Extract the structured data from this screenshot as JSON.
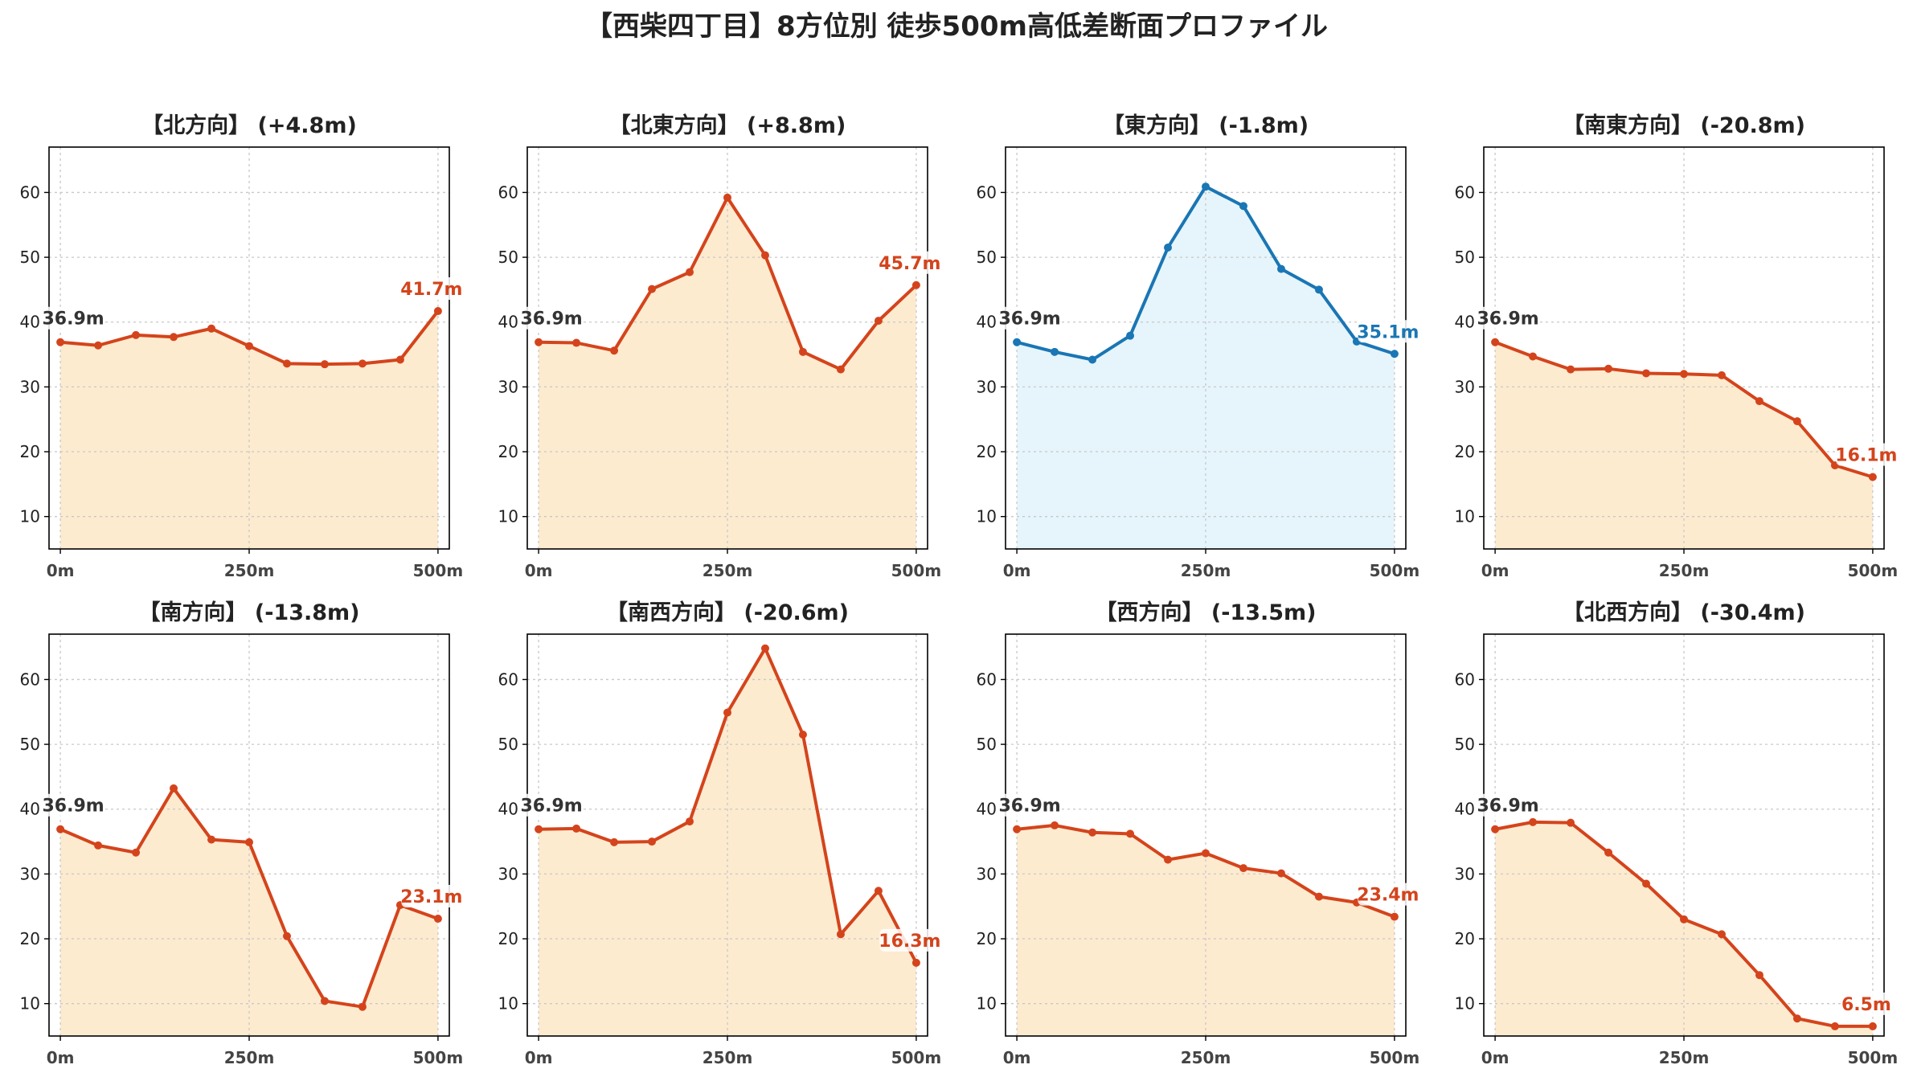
{
  "title": "【西柴四丁目】8方位別 徒歩500m高低差断面プロファイル",
  "colors": {
    "up": "#d4441c",
    "down": "#1a76b4",
    "fill_warm": "#fdebd0",
    "fill_cool": "#e6f5fb"
  },
  "chart_data": [
    {
      "type": "area",
      "title": "【北方向】 (+4.8m)",
      "x": [
        0,
        50,
        100,
        150,
        200,
        250,
        300,
        350,
        400,
        450,
        500
      ],
      "y": [
        36.9,
        36.4,
        38.0,
        37.7,
        39.0,
        36.3,
        33.6,
        33.5,
        33.6,
        34.2,
        41.7
      ],
      "start_label": "36.9m",
      "end_label": "41.7m",
      "scheme": "warm",
      "xticks": [
        "0m",
        "250m",
        "500m"
      ],
      "yticks": [
        10,
        20,
        30,
        40,
        50,
        60
      ],
      "xlim": [
        -15,
        515
      ],
      "ylim": [
        5,
        67
      ],
      "grid": true
    },
    {
      "type": "area",
      "title": "【北東方向】 (+8.8m)",
      "x": [
        0,
        50,
        100,
        150,
        200,
        250,
        300,
        350,
        400,
        450,
        500
      ],
      "y": [
        36.9,
        36.8,
        35.6,
        45.1,
        47.7,
        59.2,
        50.3,
        35.4,
        32.7,
        40.2,
        45.7
      ],
      "start_label": "36.9m",
      "end_label": "45.7m",
      "scheme": "warm",
      "xticks": [
        "0m",
        "250m",
        "500m"
      ],
      "yticks": [
        10,
        20,
        30,
        40,
        50,
        60
      ],
      "xlim": [
        -15,
        515
      ],
      "ylim": [
        5,
        67
      ],
      "grid": true
    },
    {
      "type": "area",
      "title": "【東方向】 (-1.8m)",
      "x": [
        0,
        50,
        100,
        150,
        200,
        250,
        300,
        350,
        400,
        450,
        500
      ],
      "y": [
        36.9,
        35.4,
        34.2,
        37.9,
        51.5,
        60.9,
        57.9,
        48.2,
        45.0,
        37.0,
        35.1
      ],
      "start_label": "36.9m",
      "end_label": "35.1m",
      "scheme": "cool",
      "xticks": [
        "0m",
        "250m",
        "500m"
      ],
      "yticks": [
        10,
        20,
        30,
        40,
        50,
        60
      ],
      "xlim": [
        -15,
        515
      ],
      "ylim": [
        5,
        67
      ],
      "grid": true
    },
    {
      "type": "area",
      "title": "【南東方向】 (-20.8m)",
      "x": [
        0,
        50,
        100,
        150,
        200,
        250,
        300,
        350,
        400,
        450,
        500
      ],
      "y": [
        36.9,
        34.7,
        32.7,
        32.8,
        32.1,
        32.0,
        31.8,
        27.8,
        24.7,
        17.9,
        16.1
      ],
      "start_label": "36.9m",
      "end_label": "16.1m",
      "scheme": "warm",
      "xticks": [
        "0m",
        "250m",
        "500m"
      ],
      "yticks": [
        10,
        20,
        30,
        40,
        50,
        60
      ],
      "xlim": [
        -15,
        515
      ],
      "ylim": [
        5,
        67
      ],
      "grid": true
    },
    {
      "type": "area",
      "title": "【南方向】 (-13.8m)",
      "x": [
        0,
        50,
        100,
        150,
        200,
        250,
        300,
        350,
        400,
        450,
        500
      ],
      "y": [
        36.9,
        34.4,
        33.3,
        43.2,
        35.3,
        34.9,
        20.4,
        10.4,
        9.5,
        25.2,
        23.1
      ],
      "start_label": "36.9m",
      "end_label": "23.1m",
      "scheme": "warm",
      "xticks": [
        "0m",
        "250m",
        "500m"
      ],
      "yticks": [
        10,
        20,
        30,
        40,
        50,
        60
      ],
      "xlim": [
        -15,
        515
      ],
      "ylim": [
        5,
        67
      ],
      "grid": true
    },
    {
      "type": "area",
      "title": "【南西方向】 (-20.6m)",
      "x": [
        0,
        50,
        100,
        150,
        200,
        250,
        300,
        350,
        400,
        450,
        500
      ],
      "y": [
        36.9,
        37.0,
        34.9,
        35.0,
        38.1,
        54.9,
        64.8,
        51.5,
        20.7,
        27.4,
        16.3
      ],
      "start_label": "36.9m",
      "end_label": "16.3m",
      "scheme": "warm",
      "xticks": [
        "0m",
        "250m",
        "500m"
      ],
      "yticks": [
        10,
        20,
        30,
        40,
        50,
        60
      ],
      "xlim": [
        -15,
        515
      ],
      "ylim": [
        5,
        67
      ],
      "grid": true
    },
    {
      "type": "area",
      "title": "【西方向】 (-13.5m)",
      "x": [
        0,
        50,
        100,
        150,
        200,
        250,
        300,
        350,
        400,
        450,
        500
      ],
      "y": [
        36.9,
        37.5,
        36.4,
        36.2,
        32.2,
        33.2,
        30.9,
        30.1,
        26.5,
        25.6,
        23.4
      ],
      "start_label": "36.9m",
      "end_label": "23.4m",
      "scheme": "warm",
      "xticks": [
        "0m",
        "250m",
        "500m"
      ],
      "yticks": [
        10,
        20,
        30,
        40,
        50,
        60
      ],
      "xlim": [
        -15,
        515
      ],
      "ylim": [
        5,
        67
      ],
      "grid": true
    },
    {
      "type": "area",
      "title": "【北西方向】 (-30.4m)",
      "x": [
        0,
        50,
        100,
        150,
        200,
        250,
        300,
        350,
        400,
        450,
        500
      ],
      "y": [
        36.9,
        38.0,
        37.9,
        33.3,
        28.5,
        23.0,
        20.7,
        14.4,
        7.7,
        6.5,
        6.5
      ],
      "start_label": "36.9m",
      "end_label": "6.5m",
      "scheme": "warm",
      "xticks": [
        "0m",
        "250m",
        "500m"
      ],
      "yticks": [
        10,
        20,
        30,
        40,
        50,
        60
      ],
      "xlim": [
        -15,
        515
      ],
      "ylim": [
        5,
        67
      ],
      "grid": true
    }
  ]
}
